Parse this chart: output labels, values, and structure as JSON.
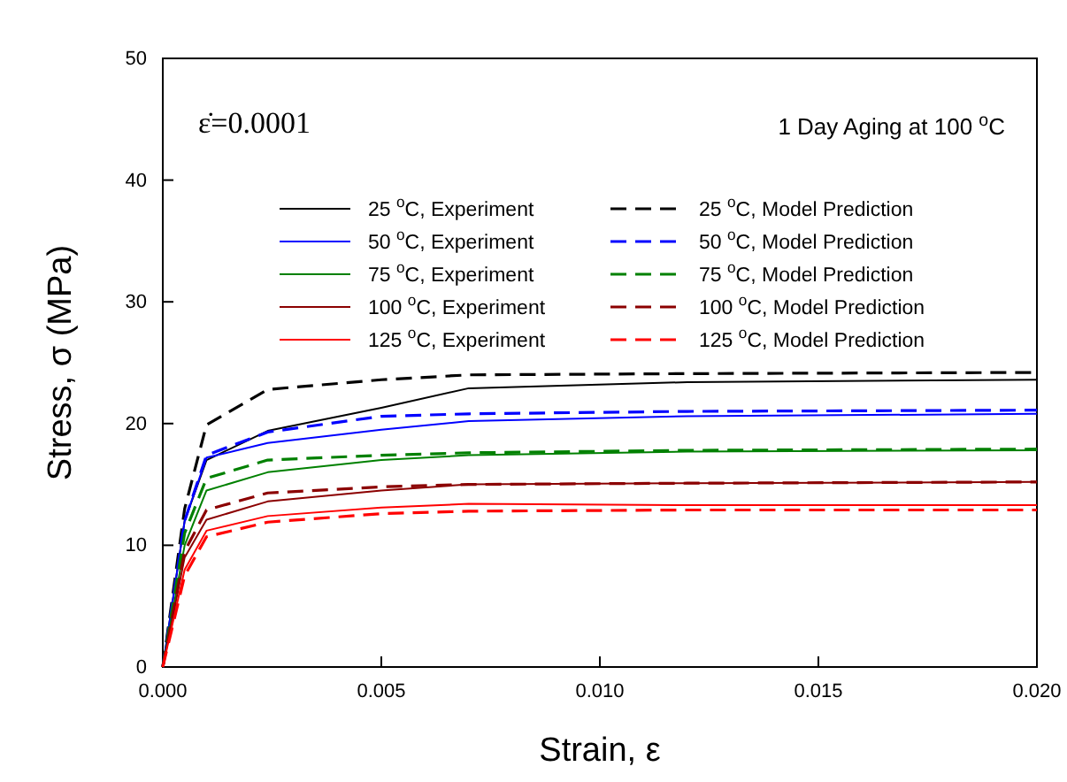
{
  "chart_data": {
    "type": "line",
    "xlabel": "Strain, ε",
    "ylabel": "Stress, σ (MPa)",
    "x": [
      0,
      0.0005,
      0.001,
      0.0024,
      0.005,
      0.007,
      0.012,
      0.02
    ],
    "xlim": [
      0,
      0.02
    ],
    "xticks": [
      {
        "value": 0,
        "label": "0.000"
      },
      {
        "value": 0.005,
        "label": "0.005"
      },
      {
        "value": 0.01,
        "label": "0.010"
      },
      {
        "value": 0.015,
        "label": "0.015"
      },
      {
        "value": 0.02,
        "label": "0.020"
      }
    ],
    "ylim": [
      0,
      50
    ],
    "yticks": [
      0,
      10,
      20,
      30,
      40,
      50
    ],
    "legend": "top",
    "grid": false,
    "annotations": [
      "ε̇=0.0001",
      "1 Day Aging at 100 $^{o}$C"
    ],
    "series": [
      {
        "name": "25 $^{o}$C, Experiment",
        "color": "#000000",
        "line_style": "solid",
        "values": [
          0,
          12,
          17.0,
          19.4,
          21.3,
          22.9,
          23.4,
          23.6
        ]
      },
      {
        "name": "50 $^{o}$C, Experiment",
        "color": "#0000ff",
        "line_style": "solid",
        "values": [
          0,
          12,
          17.2,
          18.4,
          19.5,
          20.2,
          20.6,
          20.8
        ]
      },
      {
        "name": "75 $^{o}$C, Experiment",
        "color": "#008000",
        "line_style": "solid",
        "values": [
          0,
          10,
          14.5,
          16.0,
          17.0,
          17.4,
          17.7,
          17.8
        ]
      },
      {
        "name": "100 $^{o}$C, Experiment",
        "color": "#8b0000",
        "line_style": "solid",
        "values": [
          0,
          9,
          12.1,
          13.6,
          14.5,
          15.0,
          15.1,
          15.2
        ]
      },
      {
        "name": "125 $^{o}$C, Experiment",
        "color": "#ff0000",
        "line_style": "solid",
        "values": [
          0,
          8,
          11.2,
          12.4,
          13.1,
          13.4,
          13.3,
          13.3
        ]
      },
      {
        "name": "25 $^{o}$C, Model Prediction",
        "color": "#000000",
        "line_style": "dashed",
        "values": [
          0,
          13,
          19.9,
          22.8,
          23.6,
          24.0,
          24.1,
          24.2
        ]
      },
      {
        "name": "50 $^{o}$C, Model Prediction",
        "color": "#0000ff",
        "line_style": "dashed",
        "values": [
          0,
          12,
          17.4,
          19.3,
          20.6,
          20.8,
          21.0,
          21.1
        ]
      },
      {
        "name": "75 $^{o}$C, Model Prediction",
        "color": "#008000",
        "line_style": "dashed",
        "values": [
          0,
          11,
          15.5,
          17.0,
          17.4,
          17.6,
          17.8,
          17.9
        ]
      },
      {
        "name": "100 $^{o}$C, Model Prediction",
        "color": "#8b0000",
        "line_style": "dashed",
        "values": [
          0,
          9.5,
          12.9,
          14.3,
          14.8,
          15.0,
          15.1,
          15.2
        ]
      },
      {
        "name": "125 $^{o}$C, Model Prediction",
        "color": "#ff0000",
        "line_style": "dashed",
        "values": [
          0,
          7.5,
          10.7,
          11.9,
          12.6,
          12.8,
          12.9,
          12.9
        ]
      }
    ]
  }
}
